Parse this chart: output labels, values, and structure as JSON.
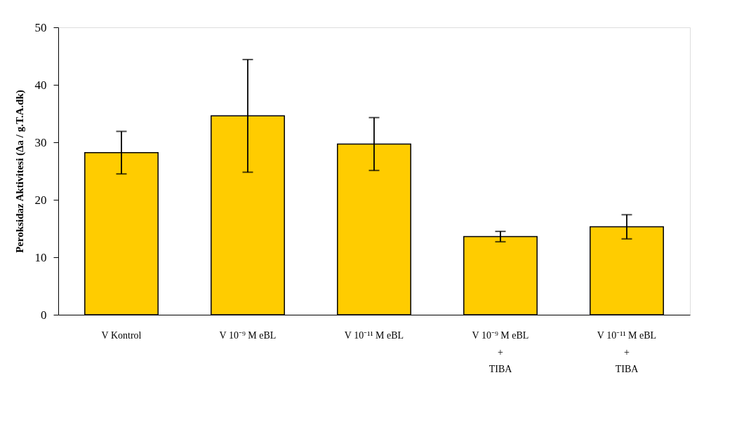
{
  "chart_data": {
    "type": "bar",
    "ylabel": "Peroksidaz Aktivitesi (Δa / g.T.A.dk)",
    "categories": [
      "V Kontrol",
      "V 10⁻⁹ M eBL",
      "V 10⁻¹¹ M eBL",
      "V 10⁻⁹ M eBL\n+\nTIBA",
      "V 10⁻¹¹ M eBL\n+\nTIBA"
    ],
    "values": [
      28.2,
      34.6,
      29.7,
      13.6,
      15.3
    ],
    "errors": [
      3.7,
      9.8,
      4.6,
      0.9,
      2.1
    ],
    "color": "#ffcc00",
    "ylim": [
      0,
      50
    ],
    "yticks": [
      0,
      10,
      20,
      30,
      40,
      50
    ],
    "grid": false
  }
}
